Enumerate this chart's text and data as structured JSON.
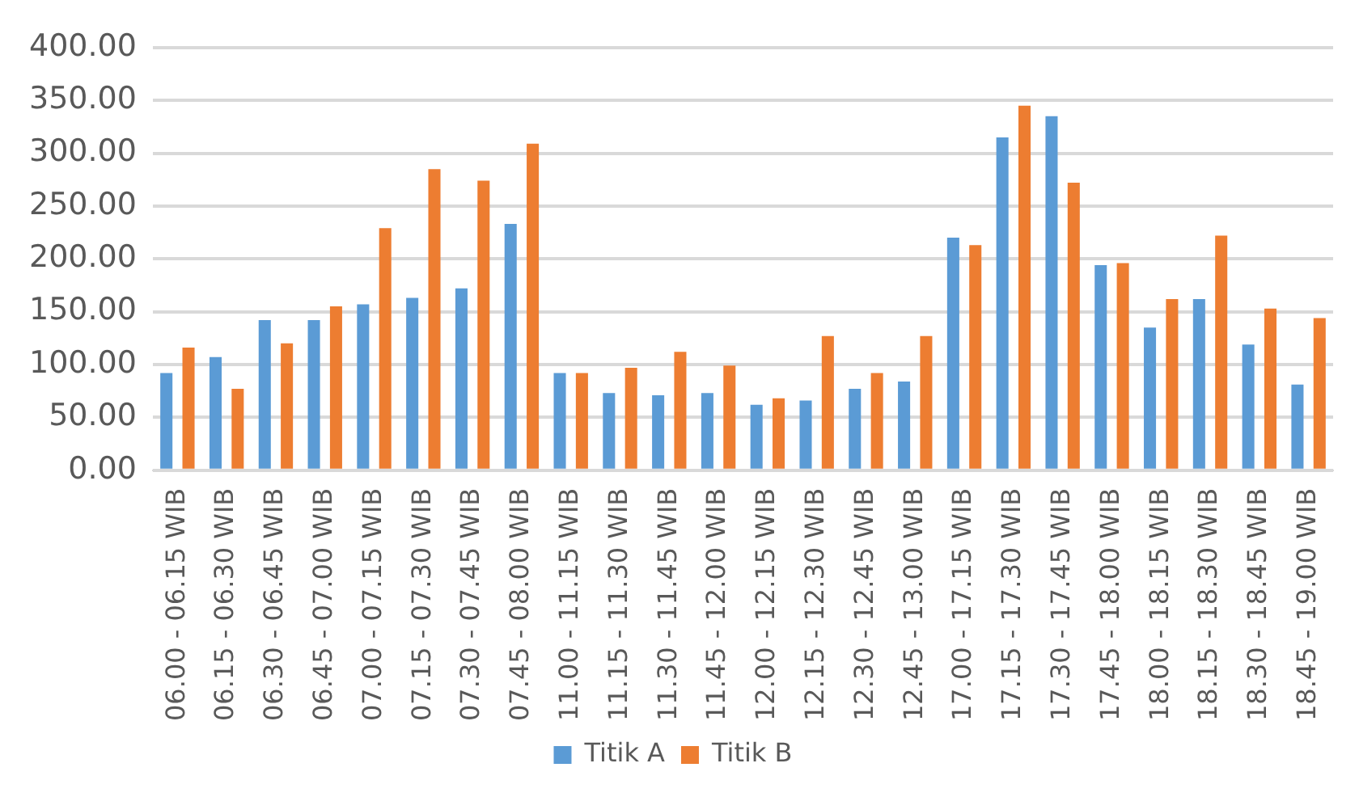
{
  "chart_data": {
    "type": "bar",
    "categories": [
      "06.00 - 06.15 WIB",
      "06.15 - 06.30 WIB",
      "06.30 - 06.45 WIB",
      "06.45 - 07.00 WIB",
      "07.00 - 07.15 WIB",
      "07.15 - 07.30 WIB",
      "07.30 - 07.45 WIB",
      "07.45 - 08.00 WIB",
      "11.00 - 11.15 WIB",
      "11.15 - 11.30 WIB",
      "11.30 - 11.45 WIB",
      "11.45 - 12.00 WIB",
      "12.00 - 12.15 WIB",
      "12.15 - 12.30 WIB",
      "12.30 - 12.45 WIB",
      "12.45 - 13.00 WIB",
      "17.00 - 17.15 WIB",
      "17.15 - 17.30 WIB",
      "17.30 - 17.45 WIB",
      "17.45 - 18.00 WIB",
      "18.00 - 18.15 WIB",
      "18.15 - 18.30 WIB",
      "18.30 - 18.45 WIB",
      "18.45 - 19.00 WIB"
    ],
    "series": [
      {
        "name": "Titik A",
        "color": "#5b9bd5",
        "values": [
          92,
          107,
          142,
          142,
          157,
          163,
          172,
          233,
          92,
          73,
          71,
          73,
          62,
          66,
          77,
          84,
          220,
          315,
          335,
          194,
          135,
          162,
          119,
          81
        ]
      },
      {
        "name": "Titik B",
        "color": "#ed7d31",
        "values": [
          116,
          77,
          120,
          155,
          229,
          285,
          274,
          309,
          92,
          97,
          112,
          99,
          68,
          127,
          92,
          127,
          213,
          345,
          272,
          196,
          162,
          222,
          153,
          144
        ]
      }
    ],
    "ylim": [
      0,
      400
    ],
    "yticks": [
      {
        "value": 0,
        "label": "0.00"
      },
      {
        "value": 50,
        "label": "50.00"
      },
      {
        "value": 100,
        "label": "100.00"
      },
      {
        "value": 150,
        "label": "150.00"
      },
      {
        "value": 200,
        "label": "200.00"
      },
      {
        "value": 250,
        "label": "250.00"
      },
      {
        "value": 300,
        "label": "300.00"
      },
      {
        "value": 350,
        "label": "350.00"
      },
      {
        "value": 400,
        "label": "400.00"
      }
    ],
    "grid": "y",
    "legend": "bottom"
  }
}
